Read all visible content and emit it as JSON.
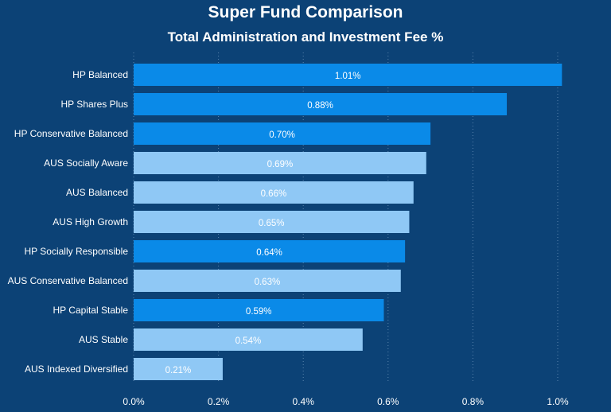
{
  "chart_data": {
    "type": "bar",
    "orientation": "horizontal",
    "title": "Super Fund Comparison",
    "subtitle": "Total Administration and Investment Fee %",
    "xlabel": "",
    "ylabel": "",
    "xlim": [
      0,
      1.0
    ],
    "xticks": [
      "0.0%",
      "0.2%",
      "0.4%",
      "0.6%",
      "0.8%",
      "1.0%"
    ],
    "xtick_values": [
      0,
      0.2,
      0.4,
      0.6,
      0.8,
      1.0
    ],
    "grid": true,
    "categories": [
      "HP Balanced",
      "HP Shares Plus",
      "HP Conservative Balanced",
      "AUS Socially Aware",
      "AUS Balanced",
      "AUS High Growth",
      "HP Socially Responsible",
      "AUS Conservative Balanced",
      "HP Capital Stable",
      "AUS Stable",
      "AUS Indexed Diversified"
    ],
    "values": [
      1.01,
      0.88,
      0.7,
      0.69,
      0.66,
      0.65,
      0.64,
      0.63,
      0.59,
      0.54,
      0.21
    ],
    "data_labels": [
      "1.01%",
      "0.88%",
      "0.70%",
      "0.69%",
      "0.66%",
      "0.65%",
      "0.64%",
      "0.63%",
      "0.59%",
      "0.54%",
      "0.21%"
    ],
    "groups": [
      "HP",
      "HP",
      "HP",
      "AUS",
      "AUS",
      "AUS",
      "HP",
      "AUS",
      "HP",
      "AUS",
      "AUS"
    ],
    "colors": {
      "HP": "#0a8ae8",
      "AUS": "#8fc8f5",
      "background": "#0c4276"
    }
  }
}
